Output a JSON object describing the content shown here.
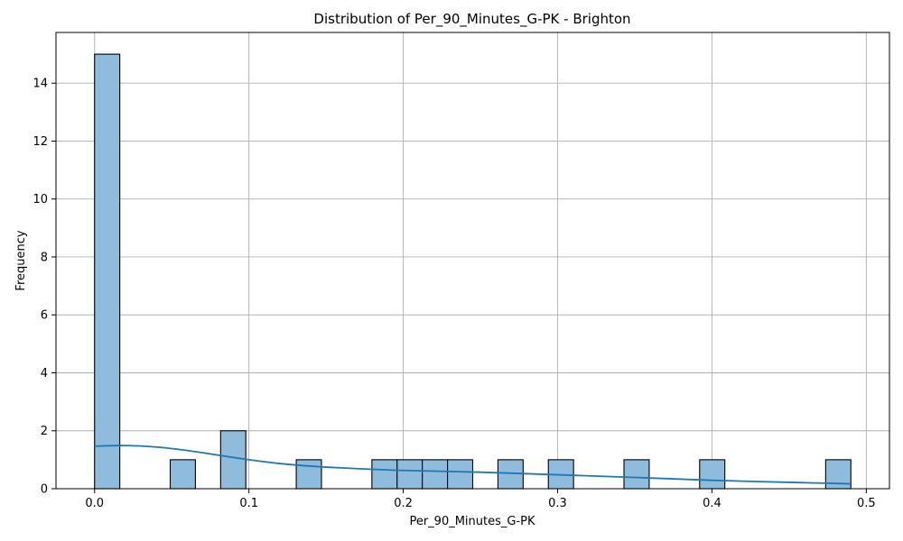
{
  "chart_data": {
    "type": "bar",
    "title": "Distribution of Per_90_Minutes_G-PK - Brighton",
    "xlabel": "Per_90_Minutes_G-PK",
    "ylabel": "Frequency",
    "xlim": [
      -0.025,
      0.515
    ],
    "ylim": [
      0,
      15.75
    ],
    "xticks": [
      "0.0",
      "0.1",
      "0.2",
      "0.3",
      "0.4",
      "0.5"
    ],
    "xtick_values": [
      0,
      0.1,
      0.2,
      0.3,
      0.4,
      0.5
    ],
    "yticks": [
      "0",
      "2",
      "4",
      "6",
      "8",
      "10",
      "12",
      "14"
    ],
    "ytick_values": [
      0,
      2,
      4,
      6,
      8,
      10,
      12,
      14
    ],
    "grid": true,
    "bar_color": "#8fbbdc",
    "bar_edge_color": "#000000",
    "kde_color": "#1f77b4",
    "bins": [
      {
        "start": 0.0,
        "end": 0.01633,
        "count": 15
      },
      {
        "start": 0.049,
        "end": 0.06533,
        "count": 1
      },
      {
        "start": 0.08167,
        "end": 0.098,
        "count": 2
      },
      {
        "start": 0.13067,
        "end": 0.147,
        "count": 1
      },
      {
        "start": 0.17967,
        "end": 0.196,
        "count": 1
      },
      {
        "start": 0.196,
        "end": 0.21233,
        "count": 1
      },
      {
        "start": 0.21233,
        "end": 0.22867,
        "count": 1
      },
      {
        "start": 0.22867,
        "end": 0.245,
        "count": 1
      },
      {
        "start": 0.26133,
        "end": 0.27767,
        "count": 1
      },
      {
        "start": 0.294,
        "end": 0.31033,
        "count": 1
      },
      {
        "start": 0.343,
        "end": 0.35933,
        "count": 1
      },
      {
        "start": 0.392,
        "end": 0.40833,
        "count": 1
      },
      {
        "start": 0.47367,
        "end": 0.49,
        "count": 1
      }
    ],
    "kde": {
      "x": [
        0.0,
        0.02,
        0.04,
        0.06,
        0.08,
        0.1,
        0.12,
        0.14,
        0.16,
        0.2,
        0.25,
        0.3,
        0.35,
        0.4,
        0.45,
        0.49
      ],
      "y": [
        1.47,
        1.49,
        1.44,
        1.32,
        1.16,
        1.0,
        0.87,
        0.78,
        0.72,
        0.63,
        0.57,
        0.48,
        0.39,
        0.29,
        0.22,
        0.17
      ]
    }
  }
}
